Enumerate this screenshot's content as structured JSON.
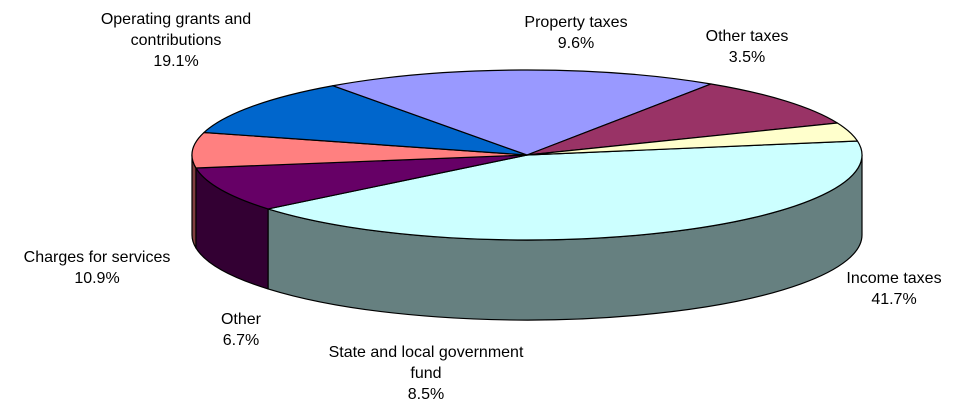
{
  "chart_data": {
    "type": "pie",
    "style": "3d-exploded-none",
    "slices": [
      {
        "label_lines": [
          "Income taxes"
        ],
        "value": 41.7,
        "value_text": "41.7%",
        "color": "#CCFFFF",
        "side_color": "#668080"
      },
      {
        "label_lines": [
          "State and local government",
          "fund"
        ],
        "value": 8.5,
        "value_text": "8.5%",
        "color": "#660066",
        "side_color": "#330033"
      },
      {
        "label_lines": [
          "Other"
        ],
        "value": 6.7,
        "value_text": "6.7%",
        "color": "#FF8080",
        "side_color": "#804040"
      },
      {
        "label_lines": [
          "Charges for services"
        ],
        "value": 10.9,
        "value_text": "10.9%",
        "color": "#0066CC",
        "side_color": "#003366"
      },
      {
        "label_lines": [
          "Operating grants and",
          "contributions"
        ],
        "value": 19.1,
        "value_text": "19.1%",
        "color": "#9999FF",
        "side_color": "#4D4D80"
      },
      {
        "label_lines": [
          "Property taxes"
        ],
        "value": 9.6,
        "value_text": "9.6%",
        "color": "#993366",
        "side_color": "#4D1A33"
      },
      {
        "label_lines": [
          "Other taxes"
        ],
        "value": 3.5,
        "value_text": "3.5%",
        "color": "#FFFFCC",
        "side_color": "#808066"
      }
    ],
    "legend": "none",
    "title": ""
  }
}
